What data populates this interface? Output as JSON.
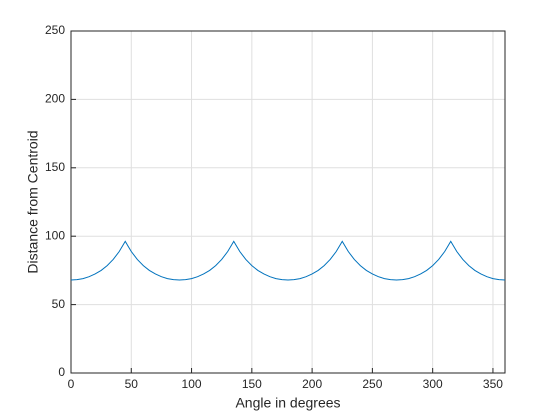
{
  "chart_data": {
    "type": "line",
    "xlabel": "Angle in degrees",
    "ylabel": "Distance from Centroid",
    "x": [
      0,
      5,
      10,
      15,
      20,
      25,
      30,
      35,
      40,
      45,
      50,
      55,
      60,
      65,
      70,
      75,
      80,
      85,
      90,
      95,
      100,
      105,
      110,
      115,
      120,
      125,
      130,
      135,
      140,
      145,
      150,
      155,
      160,
      165,
      170,
      175,
      180,
      185,
      190,
      195,
      200,
      205,
      210,
      215,
      220,
      225,
      230,
      235,
      240,
      245,
      250,
      255,
      260,
      265,
      270,
      275,
      280,
      285,
      290,
      295,
      300,
      305,
      310,
      315,
      320,
      325,
      330,
      335,
      340,
      345,
      350,
      355,
      360
    ],
    "series": [
      {
        "name": "Distance",
        "color": "#0072bd",
        "values": [
          68,
          68.3,
          69.0,
          70.4,
          72.4,
          75.0,
          78.5,
          83.0,
          88.8,
          96.2,
          88.8,
          83.0,
          78.5,
          75.0,
          72.4,
          70.4,
          69.0,
          68.3,
          68,
          68.3,
          69.0,
          70.4,
          72.4,
          75.0,
          78.5,
          83.0,
          88.8,
          96.2,
          88.8,
          83.0,
          78.5,
          75.0,
          72.4,
          70.4,
          69.0,
          68.3,
          68,
          68.3,
          69.0,
          70.4,
          72.4,
          75.0,
          78.5,
          83.0,
          88.8,
          96.2,
          88.8,
          83.0,
          78.5,
          75.0,
          72.4,
          70.4,
          69.0,
          68.3,
          68,
          68.3,
          69.0,
          70.4,
          72.4,
          75.0,
          78.5,
          83.0,
          88.8,
          96.2,
          88.8,
          83.0,
          78.5,
          75.0,
          72.4,
          70.4,
          69.0,
          68.3,
          68
        ]
      }
    ],
    "xlim": [
      0,
      360
    ],
    "xticks": [
      0,
      50,
      100,
      150,
      200,
      250,
      300,
      350
    ],
    "ylim": [
      0,
      250
    ],
    "yticks": [
      0,
      50,
      100,
      150,
      200,
      250
    ],
    "grid": true
  }
}
